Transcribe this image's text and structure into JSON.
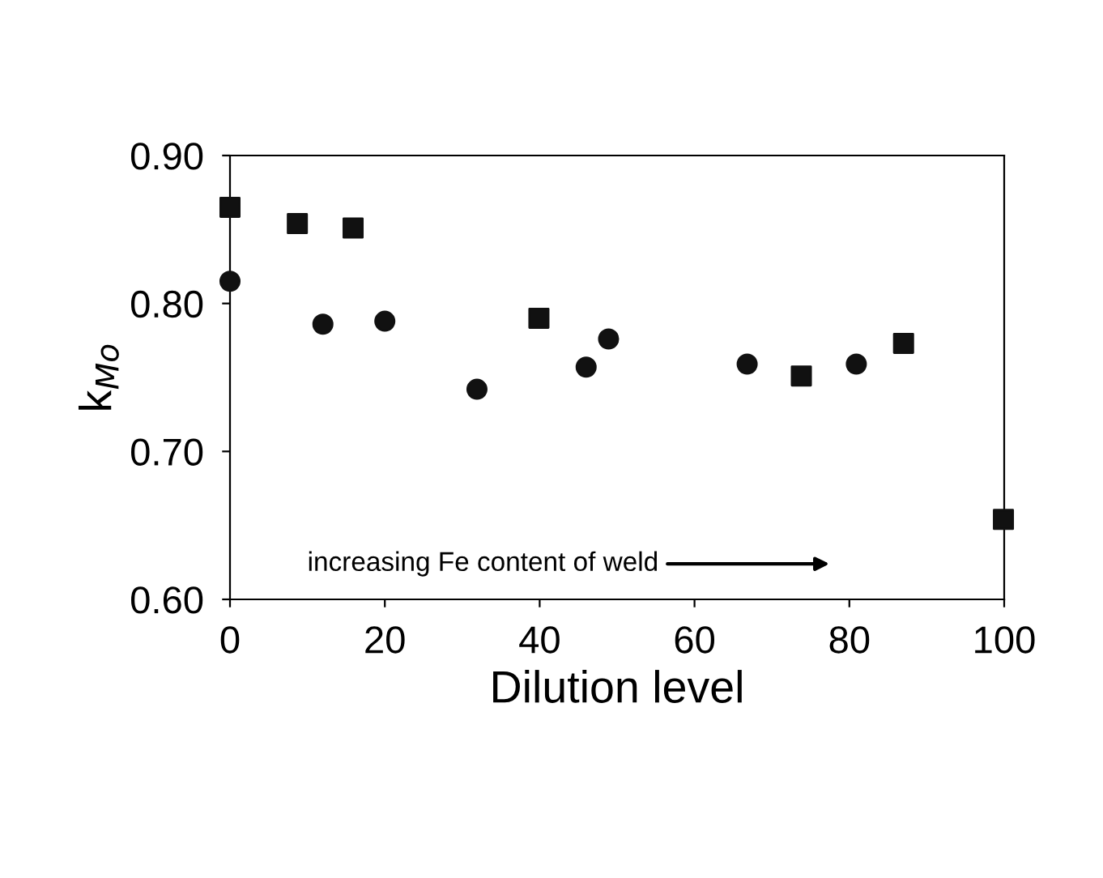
{
  "chart_data": {
    "type": "scatter",
    "xlabel": "Dilution level",
    "ylabel": "k$_{Mo}$",
    "annotations": [
      "increasing Fe content of weld"
    ],
    "series": [
      {
        "marker": "square",
        "color": "#111111",
        "x": [
          0,
          8.7,
          15.9,
          39.9,
          73.8,
          87,
          99.9
        ],
        "values": [
          0.865,
          0.854,
          0.851,
          0.79,
          0.751,
          0.773,
          0.654
        ]
      },
      {
        "marker": "circle",
        "color": "#111111",
        "x": [
          0,
          12,
          20,
          31.9,
          46,
          48.9,
          66.8,
          80.9
        ],
        "values": [
          0.815,
          0.786,
          0.788,
          0.742,
          0.757,
          0.776,
          0.759,
          0.759
        ]
      }
    ],
    "xlim": [
      0,
      100
    ],
    "ylim": [
      0.6,
      0.9
    ],
    "xticks": [
      0,
      20,
      40,
      60,
      80,
      100
    ],
    "yticks": [
      {
        "value": 0.6,
        "label": "0.60"
      },
      {
        "value": 0.7,
        "label": "0.70"
      },
      {
        "value": 0.8,
        "label": "0.80"
      },
      {
        "value": 0.9,
        "label": "0.90"
      }
    ],
    "grid": false,
    "legend": false
  }
}
